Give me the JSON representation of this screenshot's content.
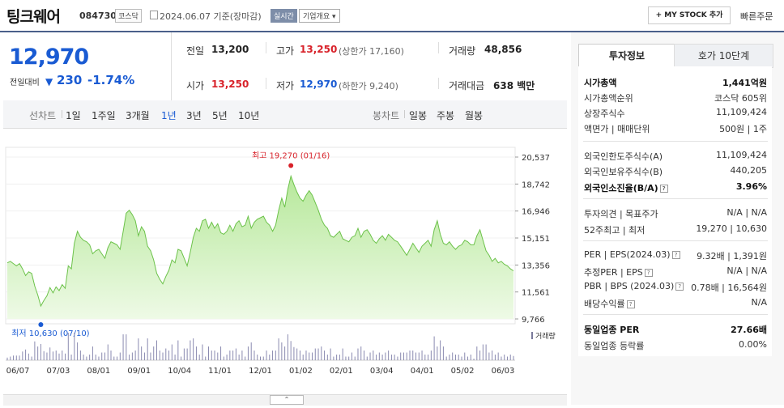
{
  "header": {
    "title": "팅크웨어",
    "code": "084730",
    "market": "코스닥",
    "date": "2024.06.07 기준(장마감)",
    "realtime": "실시간",
    "corp_overview": "기업개요 ▾",
    "my_stock": "+ MY STOCK 추가",
    "quick_order": "빠른주문"
  },
  "price": {
    "current": "12,970",
    "change_label": "전일대비",
    "change_arrow": "▼",
    "change_value": "230",
    "change_pct": "-1.74%"
  },
  "stats": {
    "prev_label": "전일",
    "prev_value": "13,200",
    "high_label": "고가",
    "high_value": "13,250",
    "upper_limit": "(상한가 17,160)",
    "volume_label": "거래량",
    "volume_value": "48,856",
    "open_label": "시가",
    "open_value": "13,250",
    "low_label": "저가",
    "low_value": "12,970",
    "lower_limit": "(하한가 9,240)",
    "amount_label": "거래대금",
    "amount_value": "638 백만"
  },
  "period_bar": {
    "line_label": "선차트",
    "periods": [
      "1일",
      "1주일",
      "3개월",
      "1년",
      "3년",
      "5년",
      "10년"
    ],
    "active_period": "1년",
    "candle_label": "봉차트",
    "candle_periods": [
      "일봉",
      "주봉",
      "월봉"
    ]
  },
  "chart_data": {
    "type": "area",
    "series": [
      {
        "values": [
          13500,
          13600,
          13450,
          13300,
          13450,
          13100,
          12650,
          12900,
          12800,
          11950,
          11350,
          10630,
          11000,
          11300,
          11850,
          11500,
          11900,
          11650,
          12050,
          11800,
          13300,
          13100,
          14800,
          15600,
          15200,
          15000,
          14900,
          14700,
          14100,
          14300,
          14400,
          14100,
          13800,
          14500,
          14900,
          14800,
          14700,
          14400,
          15600,
          16800,
          17000,
          16700,
          16300,
          15300,
          15900,
          15600,
          14600,
          14300,
          13700,
          12800,
          12400,
          12100,
          12600,
          13000,
          13700,
          13500,
          14400,
          14300,
          13800,
          13300,
          14200,
          15200,
          15800,
          15600,
          16300,
          16400,
          15800,
          16200,
          15800,
          16100,
          15500,
          15400,
          15600,
          16000,
          15600,
          16100,
          16300,
          15900,
          16000,
          16600,
          15800,
          16200,
          16400,
          16500,
          16600,
          16200,
          16000,
          15600,
          16000,
          17000,
          17800,
          17200,
          18400,
          19270,
          18700,
          18200,
          17800,
          17600,
          18000,
          18300,
          18000,
          17500,
          17000,
          16400,
          16000,
          15800,
          15300,
          15200,
          15400,
          15600,
          15100,
          15000,
          14900,
          15200,
          15300,
          15800,
          15200,
          15600,
          15700,
          15400,
          15000,
          14800,
          15100,
          15300,
          15000,
          15400,
          15200,
          15000,
          14900,
          14600,
          14300,
          14000,
          14400,
          14800,
          14500,
          14200,
          14600,
          14800,
          15000,
          14600,
          15700,
          16300,
          15400,
          14800,
          14700,
          14900,
          14600,
          14400,
          14600,
          14700,
          15000,
          14900,
          14700,
          14700,
          15300,
          15700,
          15000,
          14300,
          14000,
          13600,
          13800,
          13500,
          13600,
          13400,
          13300,
          13100,
          12970
        ]
      }
    ],
    "yticks": [
      "20,537",
      "18,742",
      "16,946",
      "15,151",
      "13,356",
      "11,561",
      "9,766"
    ],
    "xticks": [
      "06/07",
      "07/03",
      "08/01",
      "09/01",
      "10/04",
      "11/01",
      "12/01",
      "01/02",
      "02/01",
      "03/04",
      "04/01",
      "05/02",
      "06/03"
    ],
    "high_annotation": "최고 19,270 (01/16)",
    "low_annotation": "최저 10,630 (07/10)",
    "high_value": 19270,
    "low_value": 10630,
    "ylim": [
      9766,
      20537
    ],
    "volume_label": "거래량",
    "colors": {
      "line": "#6cc24a",
      "fill_top": "#b6e89a",
      "fill_bottom": "#eefae6",
      "high": "#d8222a",
      "low": "#1a5bd3"
    }
  },
  "tabs": {
    "invest_info": "투자정보",
    "order_book": "호가 10단계"
  },
  "invest": {
    "g1": [
      {
        "l": "시가총액",
        "r": "1,441억원",
        "b": true
      },
      {
        "l": "시가총액순위",
        "r": "코스닥 605위"
      },
      {
        "l": "상장주식수",
        "r": "11,109,424"
      },
      {
        "l": "액면가 | 매매단위",
        "r": "500원 | 1주"
      }
    ],
    "g2": [
      {
        "l": "외국인한도주식수(A)",
        "r": "11,109,424"
      },
      {
        "l": "외국인보유주식수(B)",
        "r": "440,205"
      },
      {
        "l": "외국인소진율(B/A)",
        "r": "3.96%",
        "b": true
      }
    ],
    "g3": [
      {
        "l": "투자의견 | 목표주가",
        "r": "N/A | N/A"
      },
      {
        "l": "52주최고 | 최저",
        "r": "19,270 | 10,630"
      }
    ],
    "g4": [
      {
        "l": "PER | EPS(2024.03)",
        "r": "9.32배 | 1,391원"
      },
      {
        "l": "추정PER | EPS",
        "r": "N/A | N/A"
      },
      {
        "l": "PBR | BPS (2024.03)",
        "r": "0.78배 | 16,564원"
      },
      {
        "l": "배당수익률",
        "r": "N/A"
      }
    ],
    "g5": [
      {
        "l": "동일업종 PER",
        "r": "27.66배",
        "b": true
      },
      {
        "l": "동일업종 등락률",
        "r": "0.00%"
      }
    ]
  }
}
